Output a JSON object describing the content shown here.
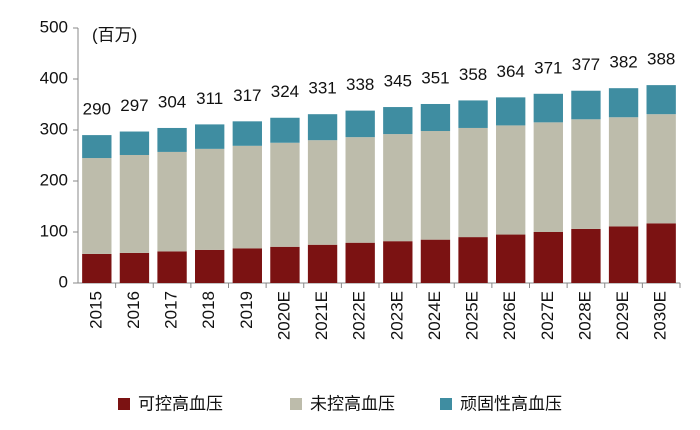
{
  "chart_data": {
    "type": "stacked_bar",
    "unit_label": "(百万)",
    "categories": [
      "2015",
      "2016",
      "2017",
      "2018",
      "2019",
      "2020E",
      "2021E",
      "2022E",
      "2023E",
      "2024E",
      "2025E",
      "2026E",
      "2027E",
      "2028E",
      "2029E",
      "2030E"
    ],
    "series": [
      {
        "name": "可控高血压",
        "color": "#7b1212",
        "values": [
          57,
          59,
          62,
          65,
          68,
          71,
          75,
          79,
          82,
          85,
          90,
          95,
          100,
          106,
          111,
          117
        ]
      },
      {
        "name": "未控高血压",
        "color": "#bdbcab",
        "values": [
          188,
          192,
          195,
          198,
          201,
          204,
          205,
          207,
          210,
          213,
          214,
          214,
          215,
          215,
          214,
          214
        ]
      },
      {
        "name": "顽固性高血压",
        "color": "#3f8da1",
        "values": [
          45,
          46,
          47,
          48,
          48,
          49,
          51,
          52,
          53,
          53,
          54,
          55,
          56,
          56,
          57,
          57
        ]
      }
    ],
    "totals": [
      290,
      297,
      304,
      311,
      317,
      324,
      331,
      338,
      345,
      351,
      358,
      364,
      371,
      377,
      382,
      388
    ],
    "ylim": [
      0,
      500
    ],
    "yticks": [
      0,
      100,
      200,
      300,
      400,
      500
    ],
    "grid": false,
    "legend": "bottom"
  }
}
